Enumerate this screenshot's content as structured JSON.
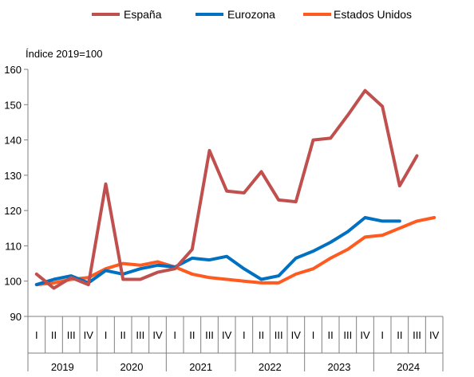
{
  "chart_data": {
    "type": "line",
    "ylabel": "Índice 2019=100",
    "ylim": [
      90,
      160
    ],
    "yticks": [
      90,
      100,
      110,
      120,
      130,
      140,
      150,
      160
    ],
    "grid": false,
    "legend_position": "top",
    "quarters": [
      "I",
      "II",
      "III",
      "IV",
      "I",
      "II",
      "III",
      "IV",
      "I",
      "II",
      "III",
      "IV",
      "I",
      "II",
      "III",
      "IV",
      "I",
      "II",
      "III",
      "IV",
      "I",
      "II",
      "III",
      "IV"
    ],
    "years": [
      "2019",
      "2020",
      "2021",
      "2022",
      "2023",
      "2024"
    ],
    "series": [
      {
        "name": "España",
        "color": "#c0504d",
        "values": [
          102,
          98,
          101,
          99,
          127.5,
          100.5,
          100.5,
          102.5,
          103.5,
          109,
          137,
          125.5,
          125,
          131,
          123,
          122.5,
          140,
          140.5,
          147,
          154,
          149.5,
          127,
          135.5,
          null
        ]
      },
      {
        "name": "Eurozona",
        "color": "#0070c0",
        "values": [
          99,
          100.5,
          101.5,
          99.5,
          103,
          102,
          103.5,
          104.5,
          104,
          106.5,
          106,
          107,
          103.5,
          100.5,
          101.5,
          106.5,
          108.5,
          111,
          114,
          118,
          117,
          117,
          null,
          null
        ]
      },
      {
        "name": "Estados Unidos",
        "color": "#ff5a1f",
        "values": [
          99,
          99.5,
          100.5,
          101,
          103.5,
          105,
          104.5,
          105.5,
          104,
          102,
          101,
          100.5,
          100,
          99.5,
          99.5,
          102,
          103.5,
          106.5,
          109,
          112.5,
          113,
          115,
          117,
          118
        ]
      }
    ]
  }
}
